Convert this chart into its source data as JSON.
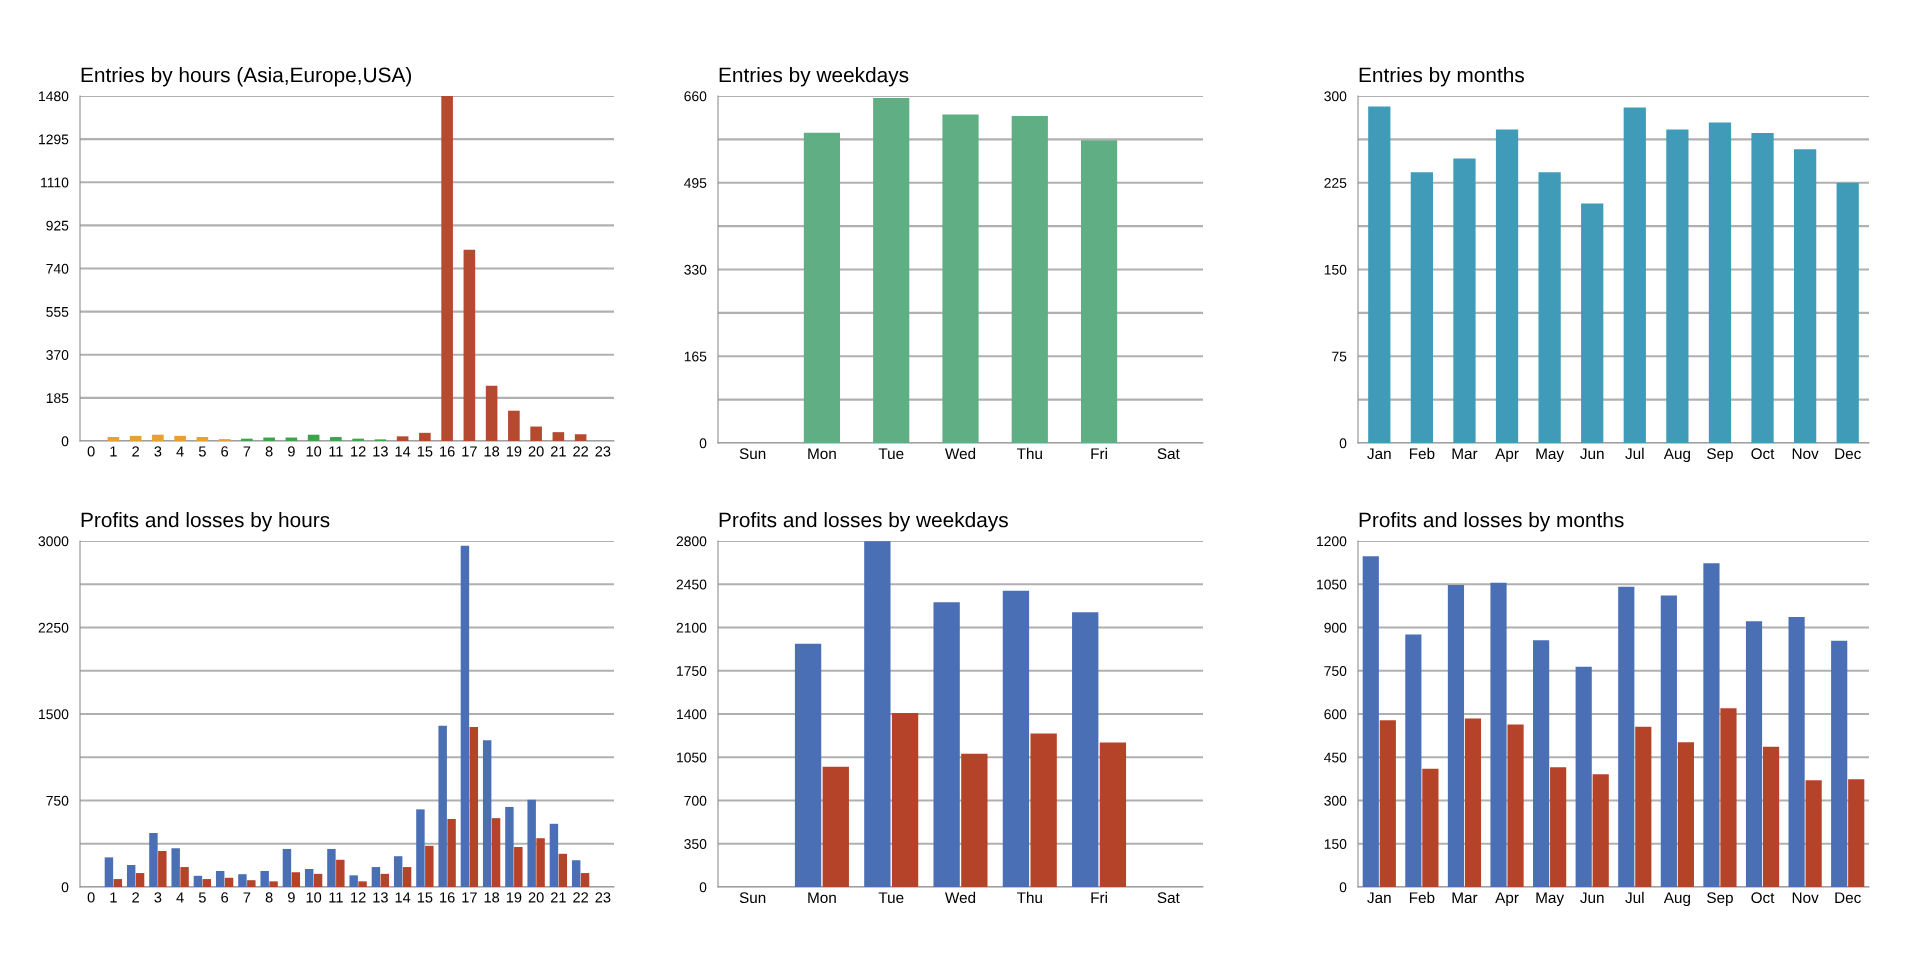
{
  "chart_data": [
    {
      "type": "bar",
      "title": "Entries by hours (Asia,Europe,USA)",
      "categories": [
        "0",
        "1",
        "2",
        "3",
        "4",
        "5",
        "6",
        "7",
        "8",
        "9",
        "10",
        "11",
        "12",
        "13",
        "14",
        "15",
        "16",
        "17",
        "18",
        "19",
        "20",
        "21",
        "22",
        "23"
      ],
      "values": [
        0,
        17,
        22,
        27,
        22,
        17,
        8,
        10,
        15,
        15,
        27,
        17,
        10,
        7,
        20,
        35,
        1480,
        820,
        237,
        130,
        62,
        38,
        29,
        0
      ],
      "colors": [
        "#e8a030",
        "#e8a030",
        "#e8a030",
        "#e8a030",
        "#e8a030",
        "#e8a030",
        "#e8a030",
        "#3fa34d",
        "#3fa34d",
        "#3fa34d",
        "#3fa34d",
        "#3fa34d",
        "#3fa34d",
        "#3fa34d",
        "#b54a30",
        "#b54a30",
        "#b54a30",
        "#b54a30",
        "#b54a30",
        "#b54a30",
        "#b54a30",
        "#b54a30",
        "#b54a30",
        "#b54a30"
      ],
      "ylim": [
        0,
        1480
      ],
      "yticks": [
        0,
        185,
        370,
        555,
        740,
        925,
        1110,
        1295,
        1480
      ],
      "grid": "y",
      "legend": false
    },
    {
      "type": "bar",
      "title": "Entries by weekdays",
      "categories": [
        "Sun",
        "Mon",
        "Tue",
        "Wed",
        "Thu",
        "Fri",
        "Sat"
      ],
      "values": [
        0,
        590,
        656,
        625,
        622,
        576,
        0
      ],
      "colors": [
        "#5fae84",
        "#5fae84",
        "#5fae84",
        "#5fae84",
        "#5fae84",
        "#5fae84",
        "#5fae84"
      ],
      "ylim": [
        0,
        660
      ],
      "yticks": [
        0,
        {
          "value": 82.5,
          "label": null
        },
        165,
        {
          "value": 247.5,
          "label": null
        },
        330,
        {
          "value": 412.5,
          "label": null
        },
        495,
        {
          "value": 577.5,
          "label": null
        },
        660
      ],
      "grid": "y",
      "legend": false
    },
    {
      "type": "bar",
      "title": "Entries by months",
      "categories": [
        "Jan",
        "Feb",
        "Mar",
        "Apr",
        "May",
        "Jun",
        "Jul",
        "Aug",
        "Sep",
        "Oct",
        "Nov",
        "Dec"
      ],
      "values": [
        291,
        234,
        246,
        271,
        234,
        207,
        290,
        271,
        277,
        268,
        254,
        225
      ],
      "colors": [
        "#3f9bb8",
        "#3f9bb8",
        "#3f9bb8",
        "#3f9bb8",
        "#3f9bb8",
        "#3f9bb8",
        "#3f9bb8",
        "#3f9bb8",
        "#3f9bb8",
        "#3f9bb8",
        "#3f9bb8",
        "#3f9bb8"
      ],
      "ylim": [
        0,
        300
      ],
      "yticks": [
        0,
        {
          "value": 37.5,
          "label": null
        },
        75,
        {
          "value": 112.5,
          "label": null
        },
        150,
        {
          "value": 187.5,
          "label": null
        },
        225,
        {
          "value": 262.5,
          "label": null
        },
        300
      ],
      "grid": "y",
      "legend": false
    },
    {
      "type": "bar",
      "title": "Profits and losses by hours",
      "categories": [
        "0",
        "1",
        "2",
        "3",
        "4",
        "5",
        "6",
        "7",
        "8",
        "9",
        "10",
        "11",
        "12",
        "13",
        "14",
        "15",
        "16",
        "17",
        "18",
        "19",
        "20",
        "21",
        "22",
        "23"
      ],
      "series": [
        {
          "color": "#4a6fb5",
          "values": [
            0,
            257,
            191,
            468,
            336,
            97,
            139,
            111,
            139,
            330,
            156,
            330,
            101,
            173,
            267,
            673,
            1398,
            2958,
            1273,
            694,
            756,
            548,
            232,
            0
          ]
        },
        {
          "color": "#b5432a",
          "values": [
            0,
            69,
            121,
            312,
            173,
            69,
            80,
            59,
            49,
            128,
            114,
            236,
            49,
            114,
            173,
            357,
            590,
            1387,
            597,
            347,
            423,
            288,
            121,
            0
          ]
        }
      ],
      "ylim": [
        0,
        3000
      ],
      "yticks": [
        0,
        {
          "value": 375,
          "label": null
        },
        750,
        {
          "value": 1125,
          "label": null
        },
        1500,
        {
          "value": 1875,
          "label": null
        },
        2250,
        {
          "value": 2625,
          "label": null
        },
        3000
      ],
      "grid": "y",
      "legend": false
    },
    {
      "type": "bar",
      "title": "Profits and losses by weekdays",
      "categories": [
        "Sun",
        "Mon",
        "Tue",
        "Wed",
        "Thu",
        "Fri",
        "Sat"
      ],
      "series": [
        {
          "color": "#4a6fb5",
          "values": [
            0,
            1969,
            2797,
            2304,
            2397,
            2223,
            0
          ]
        },
        {
          "color": "#b5432a",
          "values": [
            0,
            974,
            1408,
            1079,
            1243,
            1169,
            0
          ]
        }
      ],
      "ylim": [
        0,
        2800
      ],
      "yticks": [
        0,
        350,
        700,
        1050,
        1400,
        1750,
        2100,
        2450,
        2800
      ],
      "grid": "y",
      "legend": false
    },
    {
      "type": "bar",
      "title": "Profits and losses by months",
      "categories": [
        "Jan",
        "Feb",
        "Mar",
        "Apr",
        "May",
        "Jun",
        "Jul",
        "Aug",
        "Sep",
        "Oct",
        "Nov",
        "Dec"
      ],
      "series": [
        {
          "color": "#4a6fb5",
          "values": [
            1147,
            876,
            1047,
            1055,
            856,
            764,
            1041,
            1011,
            1123,
            922,
            936,
            854
          ]
        },
        {
          "color": "#b5432a",
          "values": [
            578,
            410,
            584,
            564,
            415,
            391,
            556,
            502,
            620,
            486,
            370,
            374
          ]
        }
      ],
      "ylim": [
        0,
        1200
      ],
      "yticks": [
        0,
        150,
        300,
        450,
        600,
        750,
        900,
        1050,
        1200
      ],
      "grid": "y",
      "legend": false
    }
  ]
}
